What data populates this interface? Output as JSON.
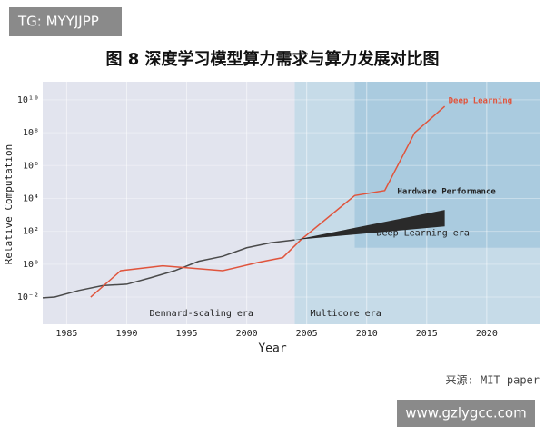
{
  "badge": "TG: MYYJJPP",
  "watermark": "www.gzlygcc.com",
  "source": "来源: MIT paper",
  "chart_data": {
    "type": "line",
    "title": "图 8  深度学习模型算力需求与算力发展对比图",
    "x_label": "Year",
    "y_label": "Relative Computation",
    "log_y": true,
    "grid": true,
    "xlim": [
      1983,
      2024.4
    ],
    "ylim": [
      0.00022,
      126000000000.0
    ],
    "xticks": [
      1985,
      1990,
      1995,
      2000,
      2005,
      2010,
      2015,
      2020
    ],
    "yticks": [
      {
        "value": 0.01,
        "label": "10⁻²"
      },
      {
        "value": 1,
        "label": "10⁰"
      },
      {
        "value": 100,
        "label": "10²"
      },
      {
        "value": 10000,
        "label": "10⁴"
      },
      {
        "value": 1000000,
        "label": "10⁶"
      },
      {
        "value": 100000000,
        "label": "10⁸"
      },
      {
        "value": 10000000000,
        "label": "10¹⁰"
      }
    ],
    "regions": [
      {
        "label": "Dennard-scaling era",
        "x": [
          1983,
          2004
        ],
        "color": "#e2e4ee"
      },
      {
        "label": "Multicore era",
        "x": [
          2004,
          2024.4
        ],
        "color": "#c6dbe8"
      },
      {
        "label": "Deep Learning era",
        "x": [
          2009,
          2024.4
        ],
        "y": [
          10,
          126000000000.0
        ],
        "color": "#aacbdf"
      }
    ],
    "series": [
      {
        "color": "#4a4a4a",
        "x": [
          1983,
          1984,
          1986,
          1988,
          1990,
          1992,
          1994,
          1996,
          1998,
          2000,
          2002,
          2004
        ],
        "values": [
          0.009,
          0.01,
          0.025,
          0.05,
          0.06,
          0.15,
          0.4,
          1.5,
          3,
          10,
          20,
          30
        ]
      },
      {
        "name": "Deep Learning",
        "color": "#e0543c",
        "x": [
          1987,
          1989.5,
          1993,
          1998,
          2001,
          2003,
          2004.5,
          2009,
          2011.5,
          2014,
          2016.5
        ],
        "values": [
          0.01,
          0.4,
          0.8,
          0.4,
          1.3,
          2.5,
          30,
          15000,
          30000,
          100000000,
          4000000000
        ]
      },
      {
        "name": "Hardware Performance",
        "color": "#2a2a2a",
        "x": [
          2004,
          2016.5
        ],
        "values": [
          30,
          2000
        ],
        "base": [
          30,
          200
        ]
      }
    ]
  }
}
